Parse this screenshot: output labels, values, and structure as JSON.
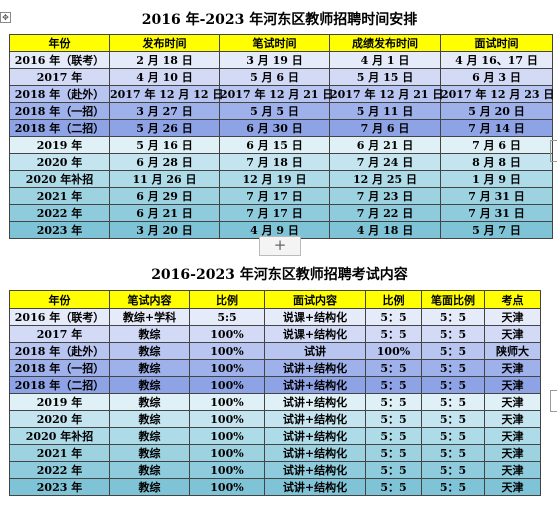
{
  "table1": {
    "title": "2016 年-2023 年河东区教师招聘时间安排",
    "headers": [
      "年份",
      "发布时间",
      "笔试时间",
      "成绩发布时间",
      "面试时间"
    ],
    "rows": [
      [
        "2016 年（联考）",
        "2 月 18 日",
        "3 月 19 日",
        "4 月 1 日",
        "4 月 16、17 日"
      ],
      [
        "2017 年",
        "4 月 10 日",
        "5 月 6 日",
        "5 月 15 日",
        "6 月 3 日"
      ],
      [
        "2018 年（赴外）",
        "2017 年 12 月 12 日",
        "2017 年 12 月 21 日",
        "2017 年 12 月 21 日",
        "2017 年 12 月 23 日"
      ],
      [
        "2018 年（一招）",
        "3 月 27 日",
        "5 月 5 日",
        "5 月 11 日",
        "5 月 20 日"
      ],
      [
        "2018 年（二招）",
        "5 月 26 日",
        "6 月 30 日",
        "7 月 6 日",
        "7 月 14 日"
      ],
      [
        "2019 年",
        "5 月 16 日",
        "6 月 15 日",
        "6 月 21 日",
        "7 月 6 日"
      ],
      [
        "2020 年",
        "6 月 28 日",
        "7 月 18 日",
        "7 月 24 日",
        "8 月 8 日"
      ],
      [
        "2020 年补招",
        "11 月 26 日",
        "12 月 19 日",
        "12 月 25 日",
        "1 月 9 日"
      ],
      [
        "2021 年",
        "6 月 29 日",
        "7 月 17 日",
        "7 月 23 日",
        "7 月 31 日"
      ],
      [
        "2022 年",
        "6 月 21 日",
        "7 月 17 日",
        "7 月 22 日",
        "7 月 31 日"
      ],
      [
        "2023 年",
        "3 月 20 日",
        "4 月 9 日",
        "4 月 18 日",
        "5 月 7 日"
      ]
    ]
  },
  "add_button": {
    "label": "+"
  },
  "table2": {
    "title": "2016-2023 年河东区教师招聘考试内容",
    "headers": [
      "年份",
      "笔试内容",
      "比例",
      "面试内容",
      "比例",
      "笔面比例",
      "考点"
    ],
    "rows": [
      [
        "2016 年（联考）",
        "教综+学科",
        "5:5",
        "说课+结构化",
        "5：5",
        "5：5",
        "天津"
      ],
      [
        "2017 年",
        "教综",
        "100%",
        "说课+结构化",
        "5：5",
        "5：5",
        "天津"
      ],
      [
        "2018 年（赴外）",
        "教综",
        "100%",
        "试讲",
        "100%",
        "5：5",
        "陕师大"
      ],
      [
        "2018 年（一招）",
        "教综",
        "100%",
        "试讲+结构化",
        "5：5",
        "5：5",
        "天津"
      ],
      [
        "2018 年（二招）",
        "教综",
        "100%",
        "试讲+结构化",
        "5：5",
        "5：5",
        "天津"
      ],
      [
        "2019 年",
        "教综",
        "100%",
        "试讲+结构化",
        "5：5",
        "5：5",
        "天津"
      ],
      [
        "2020 年",
        "教综",
        "100%",
        "试讲+结构化",
        "5：5",
        "5：5",
        "天津"
      ],
      [
        "2020 年补招",
        "教综",
        "100%",
        "试讲+结构化",
        "5：5",
        "5：5",
        "天津"
      ],
      [
        "2021 年",
        "教综",
        "100%",
        "试讲+结构化",
        "5：5",
        "5：5",
        "天津"
      ],
      [
        "2022 年",
        "教综",
        "100%",
        "试讲+结构化",
        "5：5",
        "5：5",
        "天津"
      ],
      [
        "2023 年",
        "教综",
        "100%",
        "试讲+结构化",
        "5：5",
        "5：5",
        "天津"
      ]
    ]
  }
}
